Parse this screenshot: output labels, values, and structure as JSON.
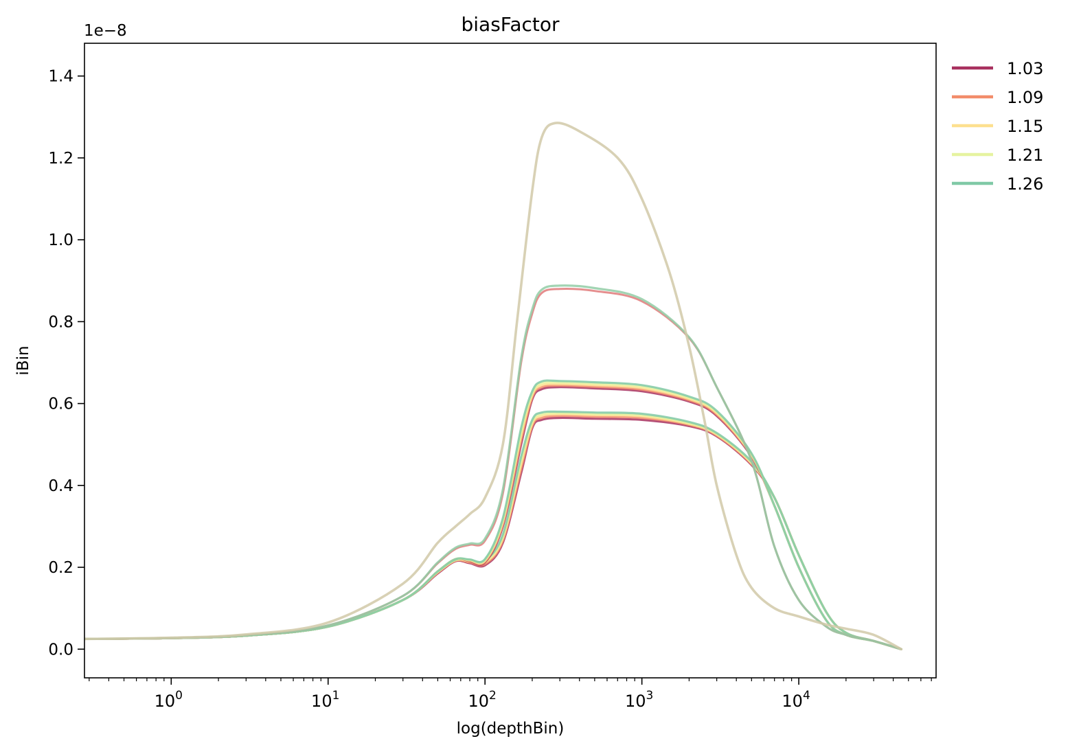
{
  "chart_data": {
    "type": "line",
    "title": "biasFactor",
    "xlabel": "log(depthBin)",
    "ylabel": "iBin",
    "y_offset_label": "1e−8",
    "x_scale": "log",
    "xlim": [
      0.28,
      75000
    ],
    "ylim": [
      -0.07,
      1.48
    ],
    "x_ticks": [
      {
        "value": 1,
        "base": "10",
        "exp": "0"
      },
      {
        "value": 10,
        "base": "10",
        "exp": "1"
      },
      {
        "value": 100,
        "base": "10",
        "exp": "2"
      },
      {
        "value": 1000,
        "base": "10",
        "exp": "3"
      },
      {
        "value": 10000,
        "base": "10",
        "exp": "4"
      }
    ],
    "y_ticks": [
      {
        "value": 0.0,
        "label": "0.0"
      },
      {
        "value": 0.2,
        "label": "0.2"
      },
      {
        "value": 0.4,
        "label": "0.4"
      },
      {
        "value": 0.6,
        "label": "0.6"
      },
      {
        "value": 0.8,
        "label": "0.8"
      },
      {
        "value": 1.0,
        "label": "1.0"
      },
      {
        "value": 1.2,
        "label": "1.2"
      },
      {
        "value": 1.4,
        "label": "1.4"
      }
    ],
    "grid": false,
    "legend_position": "outside-top-right",
    "legend": [
      {
        "label": "1.03",
        "color": "#a8315f"
      },
      {
        "label": "1.09",
        "color": "#f28c6a"
      },
      {
        "label": "1.15",
        "color": "#fde08f"
      },
      {
        "label": "1.21",
        "color": "#e6f3a0"
      },
      {
        "label": "1.26",
        "color": "#80c9a6"
      }
    ],
    "series": [
      {
        "group": 1,
        "color": "#a8315f",
        "width": 3.2,
        "x": [
          0.28,
          1,
          3,
          10,
          30,
          50,
          65,
          80,
          100,
          130,
          170,
          200,
          230,
          300,
          500,
          1000,
          2000,
          3000,
          5000,
          7000,
          10000,
          15000,
          20000,
          30000,
          45000
        ],
        "y": [
          0.025,
          0.027,
          0.033,
          0.055,
          0.12,
          0.185,
          0.215,
          0.21,
          0.205,
          0.26,
          0.43,
          0.54,
          0.56,
          0.565,
          0.563,
          0.56,
          0.545,
          0.52,
          0.45,
          0.37,
          0.23,
          0.09,
          0.04,
          0.02,
          0.0
        ]
      },
      {
        "group": 1,
        "color": "#f28c6a",
        "width": 3.2,
        "x": [
          0.28,
          1,
          3,
          10,
          30,
          50,
          65,
          80,
          100,
          130,
          170,
          200,
          230,
          300,
          500,
          1000,
          2000,
          3000,
          5000,
          7000,
          10000,
          15000,
          20000,
          30000,
          45000
        ],
        "y": [
          0.025,
          0.027,
          0.033,
          0.055,
          0.12,
          0.187,
          0.216,
          0.212,
          0.208,
          0.265,
          0.44,
          0.545,
          0.565,
          0.57,
          0.568,
          0.565,
          0.548,
          0.522,
          0.452,
          0.37,
          0.23,
          0.09,
          0.04,
          0.02,
          0.0
        ]
      },
      {
        "group": 1,
        "color": "#fde08f",
        "width": 3.2,
        "x": [
          0.28,
          1,
          3,
          10,
          30,
          50,
          65,
          80,
          100,
          130,
          170,
          200,
          230,
          300,
          500,
          1000,
          2000,
          3000,
          5000,
          7000,
          10000,
          15000,
          20000,
          30000,
          45000
        ],
        "y": [
          0.025,
          0.027,
          0.033,
          0.055,
          0.12,
          0.188,
          0.217,
          0.214,
          0.211,
          0.27,
          0.45,
          0.55,
          0.57,
          0.574,
          0.572,
          0.569,
          0.55,
          0.524,
          0.454,
          0.37,
          0.23,
          0.09,
          0.04,
          0.02,
          0.0
        ]
      },
      {
        "group": 1,
        "color": "#e6f3a0",
        "width": 3.2,
        "x": [
          0.28,
          1,
          3,
          10,
          30,
          50,
          65,
          80,
          100,
          130,
          170,
          200,
          230,
          300,
          500,
          1000,
          2000,
          3000,
          5000,
          7000,
          10000,
          15000,
          20000,
          30000,
          45000
        ],
        "y": [
          0.025,
          0.027,
          0.033,
          0.055,
          0.12,
          0.189,
          0.218,
          0.216,
          0.214,
          0.275,
          0.46,
          0.555,
          0.574,
          0.577,
          0.575,
          0.572,
          0.552,
          0.526,
          0.456,
          0.37,
          0.23,
          0.09,
          0.04,
          0.02,
          0.0
        ]
      },
      {
        "group": 1,
        "color": "#80c9a6",
        "width": 3.2,
        "x": [
          0.28,
          1,
          3,
          10,
          30,
          50,
          65,
          80,
          100,
          130,
          170,
          200,
          230,
          300,
          500,
          1000,
          2000,
          3000,
          5000,
          7000,
          10000,
          15000,
          20000,
          30000,
          45000
        ],
        "y": [
          0.025,
          0.027,
          0.033,
          0.055,
          0.12,
          0.19,
          0.219,
          0.218,
          0.217,
          0.28,
          0.47,
          0.56,
          0.578,
          0.58,
          0.578,
          0.575,
          0.555,
          0.528,
          0.458,
          0.37,
          0.23,
          0.09,
          0.04,
          0.02,
          0.0
        ]
      },
      {
        "group": 2,
        "color": "#a8315f",
        "width": 3.2,
        "x": [
          0.28,
          1,
          3,
          10,
          30,
          50,
          65,
          80,
          100,
          130,
          170,
          200,
          230,
          300,
          500,
          1000,
          2000,
          3000,
          5000,
          7000,
          10000,
          15000,
          20000,
          30000,
          45000
        ],
        "y": [
          0.025,
          0.027,
          0.033,
          0.055,
          0.12,
          0.19,
          0.22,
          0.215,
          0.212,
          0.3,
          0.5,
          0.61,
          0.635,
          0.64,
          0.637,
          0.63,
          0.605,
          0.57,
          0.47,
          0.35,
          0.2,
          0.07,
          0.035,
          0.02,
          0.0
        ]
      },
      {
        "group": 2,
        "color": "#f28c6a",
        "width": 3.2,
        "x": [
          0.28,
          1,
          3,
          10,
          30,
          50,
          65,
          80,
          100,
          130,
          170,
          200,
          230,
          300,
          500,
          1000,
          2000,
          3000,
          5000,
          7000,
          10000,
          15000,
          20000,
          30000,
          45000
        ],
        "y": [
          0.025,
          0.027,
          0.033,
          0.055,
          0.12,
          0.19,
          0.22,
          0.216,
          0.214,
          0.305,
          0.51,
          0.615,
          0.64,
          0.644,
          0.641,
          0.634,
          0.608,
          0.573,
          0.472,
          0.35,
          0.2,
          0.07,
          0.035,
          0.02,
          0.0
        ]
      },
      {
        "group": 2,
        "color": "#fde08f",
        "width": 3.2,
        "x": [
          0.28,
          1,
          3,
          10,
          30,
          50,
          65,
          80,
          100,
          130,
          170,
          200,
          230,
          300,
          500,
          1000,
          2000,
          3000,
          5000,
          7000,
          10000,
          15000,
          20000,
          30000,
          45000
        ],
        "y": [
          0.025,
          0.027,
          0.033,
          0.055,
          0.12,
          0.19,
          0.22,
          0.217,
          0.216,
          0.31,
          0.52,
          0.62,
          0.645,
          0.648,
          0.645,
          0.638,
          0.611,
          0.576,
          0.474,
          0.35,
          0.2,
          0.07,
          0.035,
          0.02,
          0.0
        ]
      },
      {
        "group": 2,
        "color": "#e6f3a0",
        "width": 3.2,
        "x": [
          0.28,
          1,
          3,
          10,
          30,
          50,
          65,
          80,
          100,
          130,
          170,
          200,
          230,
          300,
          500,
          1000,
          2000,
          3000,
          5000,
          7000,
          10000,
          15000,
          20000,
          30000,
          45000
        ],
        "y": [
          0.025,
          0.027,
          0.033,
          0.055,
          0.12,
          0.19,
          0.22,
          0.218,
          0.218,
          0.315,
          0.53,
          0.625,
          0.65,
          0.652,
          0.649,
          0.642,
          0.614,
          0.579,
          0.476,
          0.35,
          0.2,
          0.07,
          0.035,
          0.02,
          0.0
        ]
      },
      {
        "group": 2,
        "color": "#80c9a6",
        "width": 3.2,
        "x": [
          0.28,
          1,
          3,
          10,
          30,
          50,
          65,
          80,
          100,
          130,
          170,
          200,
          230,
          300,
          500,
          1000,
          2000,
          3000,
          5000,
          7000,
          10000,
          15000,
          20000,
          30000,
          45000
        ],
        "y": [
          0.025,
          0.027,
          0.033,
          0.055,
          0.12,
          0.19,
          0.22,
          0.219,
          0.22,
          0.32,
          0.54,
          0.63,
          0.654,
          0.655,
          0.652,
          0.645,
          0.617,
          0.582,
          0.478,
          0.35,
          0.2,
          0.07,
          0.035,
          0.02,
          0.0
        ]
      },
      {
        "group": 3,
        "color": "#e07a7a",
        "width": 3.0,
        "x": [
          0.28,
          1,
          3,
          10,
          30,
          50,
          65,
          80,
          100,
          130,
          170,
          200,
          230,
          300,
          500,
          1000,
          2000,
          3000,
          5000,
          7000,
          10000,
          15000,
          20000,
          30000,
          45000
        ],
        "y": [
          0.025,
          0.027,
          0.034,
          0.058,
          0.13,
          0.21,
          0.245,
          0.255,
          0.265,
          0.38,
          0.7,
          0.82,
          0.87,
          0.88,
          0.875,
          0.85,
          0.76,
          0.64,
          0.46,
          0.25,
          0.12,
          0.055,
          0.035,
          0.02,
          0.0
        ]
      },
      {
        "group": 3,
        "color": "#92cda6",
        "width": 3.2,
        "x": [
          0.28,
          1,
          3,
          10,
          30,
          50,
          65,
          80,
          100,
          130,
          170,
          200,
          230,
          300,
          500,
          1000,
          2000,
          3000,
          5000,
          7000,
          10000,
          15000,
          20000,
          30000,
          45000
        ],
        "y": [
          0.025,
          0.027,
          0.034,
          0.058,
          0.13,
          0.212,
          0.248,
          0.258,
          0.27,
          0.39,
          0.71,
          0.83,
          0.878,
          0.888,
          0.882,
          0.855,
          0.762,
          0.64,
          0.46,
          0.25,
          0.12,
          0.055,
          0.035,
          0.02,
          0.0
        ]
      },
      {
        "group": 4,
        "color": "#d1c9a8",
        "width": 3.6,
        "x": [
          0.28,
          1,
          3,
          10,
          30,
          50,
          65,
          80,
          100,
          130,
          160,
          200,
          230,
          280,
          400,
          700,
          1000,
          1500,
          2000,
          2500,
          3000,
          4000,
          5000,
          7000,
          10000,
          15000,
          20000,
          30000,
          45000
        ],
        "y": [
          0.025,
          0.028,
          0.036,
          0.065,
          0.16,
          0.26,
          0.3,
          0.33,
          0.37,
          0.5,
          0.8,
          1.12,
          1.25,
          1.285,
          1.265,
          1.2,
          1.1,
          0.92,
          0.74,
          0.56,
          0.4,
          0.23,
          0.15,
          0.1,
          0.08,
          0.06,
          0.05,
          0.035,
          0.0
        ]
      }
    ]
  }
}
